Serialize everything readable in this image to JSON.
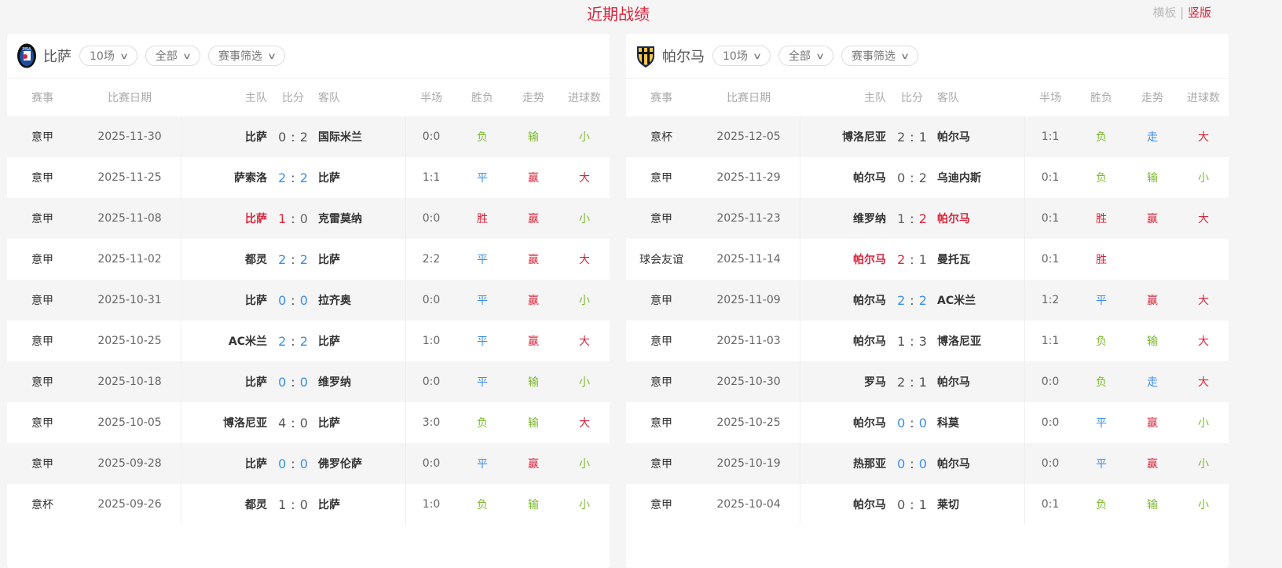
{
  "title": "近期战绩",
  "view_switch": {
    "horizontal": "横板",
    "separator": "|",
    "vertical": "竖版"
  },
  "colors": {
    "accent": "#d7263d",
    "win": "#d7263d",
    "lose": "#7cb82f",
    "draw": "#3a8ee6"
  },
  "columns": {
    "comp": "赛事",
    "date": "比赛日期",
    "home": "主队",
    "score": "比分",
    "away": "客队",
    "half": "半场",
    "result": "胜负",
    "trend": "走势",
    "goals": "进球数"
  },
  "panels": [
    {
      "team": "比萨",
      "logo": "pisa-crest-icon",
      "filters": [
        "10场",
        "全部",
        "赛事筛选"
      ],
      "rows": [
        {
          "comp": "意甲",
          "date": "2025-11-30",
          "home": "比萨",
          "hs": "0",
          "as": "2",
          "away": "国际米兰",
          "half": "0:0",
          "result": "负",
          "trend": "输",
          "goals": "小",
          "hl": ""
        },
        {
          "comp": "意甲",
          "date": "2025-11-25",
          "home": "萨索洛",
          "hs": "2",
          "as": "2",
          "away": "比萨",
          "half": "1:1",
          "result": "平",
          "trend": "赢",
          "goals": "大",
          "hl": "draw"
        },
        {
          "comp": "意甲",
          "date": "2025-11-08",
          "home": "比萨",
          "hs": "1",
          "as": "0",
          "away": "克雷莫纳",
          "half": "0:0",
          "result": "胜",
          "trend": "赢",
          "goals": "小",
          "hl": "home"
        },
        {
          "comp": "意甲",
          "date": "2025-11-02",
          "home": "都灵",
          "hs": "2",
          "as": "2",
          "away": "比萨",
          "half": "2:2",
          "result": "平",
          "trend": "赢",
          "goals": "大",
          "hl": "draw"
        },
        {
          "comp": "意甲",
          "date": "2025-10-31",
          "home": "比萨",
          "hs": "0",
          "as": "0",
          "away": "拉齐奥",
          "half": "0:0",
          "result": "平",
          "trend": "赢",
          "goals": "小",
          "hl": "draw"
        },
        {
          "comp": "意甲",
          "date": "2025-10-25",
          "home": "AC米兰",
          "hs": "2",
          "as": "2",
          "away": "比萨",
          "half": "1:0",
          "result": "平",
          "trend": "赢",
          "goals": "大",
          "hl": "draw"
        },
        {
          "comp": "意甲",
          "date": "2025-10-18",
          "home": "比萨",
          "hs": "0",
          "as": "0",
          "away": "维罗纳",
          "half": "0:0",
          "result": "平",
          "trend": "输",
          "goals": "小",
          "hl": "draw"
        },
        {
          "comp": "意甲",
          "date": "2025-10-05",
          "home": "博洛尼亚",
          "hs": "4",
          "as": "0",
          "away": "比萨",
          "half": "3:0",
          "result": "负",
          "trend": "输",
          "goals": "大",
          "hl": ""
        },
        {
          "comp": "意甲",
          "date": "2025-09-28",
          "home": "比萨",
          "hs": "0",
          "as": "0",
          "away": "佛罗伦萨",
          "half": "0:0",
          "result": "平",
          "trend": "赢",
          "goals": "小",
          "hl": "draw"
        },
        {
          "comp": "意杯",
          "date": "2025-09-26",
          "home": "都灵",
          "hs": "1",
          "as": "0",
          "away": "比萨",
          "half": "1:0",
          "result": "负",
          "trend": "输",
          "goals": "小",
          "hl": ""
        }
      ]
    },
    {
      "team": "帕尔马",
      "logo": "parma-crest-icon",
      "filters": [
        "10场",
        "全部",
        "赛事筛选"
      ],
      "rows": [
        {
          "comp": "意杯",
          "date": "2025-12-05",
          "home": "博洛尼亚",
          "hs": "2",
          "as": "1",
          "away": "帕尔马",
          "half": "1:1",
          "result": "负",
          "trend": "走",
          "goals": "大",
          "hl": ""
        },
        {
          "comp": "意甲",
          "date": "2025-11-29",
          "home": "帕尔马",
          "hs": "0",
          "as": "2",
          "away": "乌迪内斯",
          "half": "0:1",
          "result": "负",
          "trend": "输",
          "goals": "小",
          "hl": ""
        },
        {
          "comp": "意甲",
          "date": "2025-11-23",
          "home": "维罗纳",
          "hs": "1",
          "as": "2",
          "away": "帕尔马",
          "half": "0:1",
          "result": "胜",
          "trend": "赢",
          "goals": "大",
          "hl": "away"
        },
        {
          "comp": "球会友谊",
          "date": "2025-11-14",
          "home": "帕尔马",
          "hs": "2",
          "as": "1",
          "away": "曼托瓦",
          "half": "0:1",
          "result": "胜",
          "trend": "",
          "goals": "",
          "hl": "home"
        },
        {
          "comp": "意甲",
          "date": "2025-11-09",
          "home": "帕尔马",
          "hs": "2",
          "as": "2",
          "away": "AC米兰",
          "half": "1:2",
          "result": "平",
          "trend": "赢",
          "goals": "大",
          "hl": "draw"
        },
        {
          "comp": "意甲",
          "date": "2025-11-03",
          "home": "帕尔马",
          "hs": "1",
          "as": "3",
          "away": "博洛尼亚",
          "half": "1:1",
          "result": "负",
          "trend": "输",
          "goals": "大",
          "hl": ""
        },
        {
          "comp": "意甲",
          "date": "2025-10-30",
          "home": "罗马",
          "hs": "2",
          "as": "1",
          "away": "帕尔马",
          "half": "0:0",
          "result": "负",
          "trend": "走",
          "goals": "大",
          "hl": ""
        },
        {
          "comp": "意甲",
          "date": "2025-10-25",
          "home": "帕尔马",
          "hs": "0",
          "as": "0",
          "away": "科莫",
          "half": "0:0",
          "result": "平",
          "trend": "赢",
          "goals": "小",
          "hl": "draw"
        },
        {
          "comp": "意甲",
          "date": "2025-10-19",
          "home": "热那亚",
          "hs": "0",
          "as": "0",
          "away": "帕尔马",
          "half": "0:0",
          "result": "平",
          "trend": "赢",
          "goals": "小",
          "hl": "draw"
        },
        {
          "comp": "意甲",
          "date": "2025-10-04",
          "home": "帕尔马",
          "hs": "0",
          "as": "1",
          "away": "莱切",
          "half": "0:1",
          "result": "负",
          "trend": "输",
          "goals": "小",
          "hl": ""
        }
      ]
    }
  ]
}
